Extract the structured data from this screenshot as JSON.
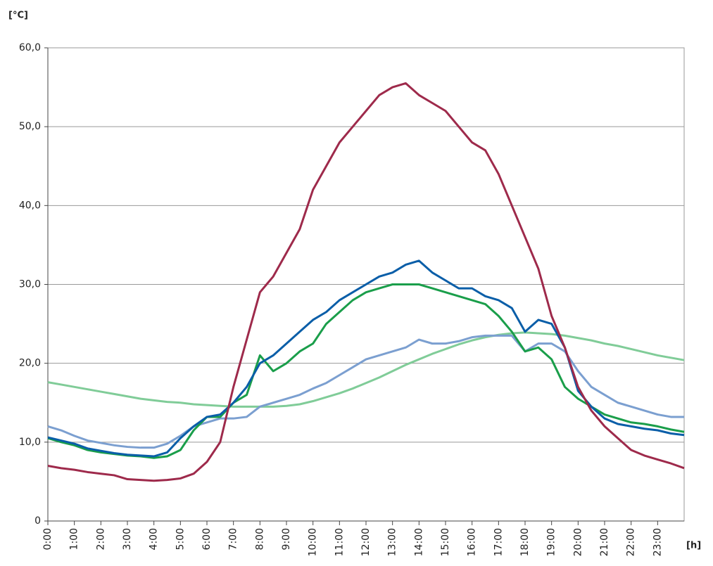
{
  "chart_data": {
    "type": "line",
    "y_label": "[°C]",
    "x_label": "[h]",
    "xlim": [
      0,
      24
    ],
    "xticks": [
      {
        "value": 0,
        "label": "0:00"
      },
      {
        "value": 1,
        "label": "1:00"
      },
      {
        "value": 2,
        "label": "2:00"
      },
      {
        "value": 3,
        "label": "3:00"
      },
      {
        "value": 4,
        "label": "4:00"
      },
      {
        "value": 5,
        "label": "5:00"
      },
      {
        "value": 6,
        "label": "6:00"
      },
      {
        "value": 7,
        "label": "7:00"
      },
      {
        "value": 8,
        "label": "8:00"
      },
      {
        "value": 9,
        "label": "9:00"
      },
      {
        "value": 10,
        "label": "10:00"
      },
      {
        "value": 11,
        "label": "11:00"
      },
      {
        "value": 12,
        "label": "12:00"
      },
      {
        "value": 13,
        "label": "13:00"
      },
      {
        "value": 14,
        "label": "14:00"
      },
      {
        "value": 15,
        "label": "15:00"
      },
      {
        "value": 16,
        "label": "16:00"
      },
      {
        "value": 17,
        "label": "17:00"
      },
      {
        "value": 18,
        "label": "18:00"
      },
      {
        "value": 19,
        "label": "19:00"
      },
      {
        "value": 20,
        "label": "20:00"
      },
      {
        "value": 21,
        "label": "21:00"
      },
      {
        "value": 22,
        "label": "22:00"
      },
      {
        "value": 23,
        "label": "23:00"
      }
    ],
    "ylim": [
      0,
      60
    ],
    "yticks": [
      0,
      {
        "value": 10,
        "label": "10,0"
      },
      {
        "value": 20,
        "label": "20,0"
      },
      {
        "value": 30,
        "label": "30,0"
      },
      {
        "value": 40,
        "label": "40,0"
      },
      {
        "value": 50,
        "label": "50,0"
      },
      {
        "value": 60,
        "label": "60,0"
      }
    ],
    "grid": true,
    "x": [
      0,
      0.5,
      1,
      1.5,
      2,
      2.5,
      3,
      3.5,
      4,
      4.5,
      5,
      5.5,
      6,
      6.5,
      7,
      7.5,
      8,
      8.5,
      9,
      9.5,
      10,
      10.5,
      11,
      11.5,
      12,
      12.5,
      13,
      13.5,
      14,
      14.5,
      15,
      15.5,
      16,
      16.5,
      17,
      17.5,
      18,
      18.5,
      19,
      19.5,
      20,
      20.5,
      21,
      21.5,
      22,
      22.5,
      23,
      23.5,
      24
    ],
    "series": [
      {
        "color": "#80cc98",
        "values": [
          17.6,
          17.3,
          17.0,
          16.7,
          16.4,
          16.1,
          15.8,
          15.5,
          15.3,
          15.1,
          15.0,
          14.8,
          14.7,
          14.6,
          14.5,
          14.5,
          14.5,
          14.5,
          14.6,
          14.8,
          15.2,
          15.7,
          16.2,
          16.8,
          17.5,
          18.2,
          19.0,
          19.8,
          20.5,
          21.2,
          21.8,
          22.4,
          22.9,
          23.3,
          23.6,
          23.8,
          23.9,
          23.8,
          23.7,
          23.5,
          23.2,
          22.9,
          22.5,
          22.2,
          21.8,
          21.4,
          21.0,
          20.7,
          20.4
        ]
      },
      {
        "color": "#7b9fd0",
        "values": [
          12,
          11.5,
          10.8,
          10.2,
          9.9,
          9.6,
          9.4,
          9.3,
          9.3,
          9.8,
          10.8,
          12,
          12.5,
          13,
          13,
          13.2,
          14.5,
          15,
          15.5,
          16,
          16.8,
          17.5,
          18.5,
          19.5,
          20.5,
          21,
          21.5,
          22,
          23,
          22.5,
          22.5,
          22.8,
          23.3,
          23.5,
          23.5,
          23.5,
          21.5,
          22.5,
          22.5,
          21.5,
          19,
          17,
          16,
          15,
          14.5,
          14,
          13.5,
          13.2,
          13.2
        ]
      },
      {
        "color": "#1a9e4a",
        "values": [
          10.5,
          10,
          9.6,
          9,
          8.7,
          8.5,
          8.3,
          8.2,
          8.0,
          8.2,
          9.0,
          11.5,
          13.2,
          13.2,
          15,
          16,
          21,
          19,
          20,
          21.5,
          22.5,
          25,
          26.5,
          28,
          29,
          29.5,
          30,
          30,
          30,
          29.5,
          29,
          28.5,
          28,
          27.5,
          26,
          24,
          21.5,
          22,
          20.5,
          17,
          15.5,
          14.5,
          13.5,
          13,
          12.5,
          12.3,
          12,
          11.6,
          11.3
        ]
      },
      {
        "color": "#0a5ea8",
        "values": [
          10.6,
          10.2,
          9.8,
          9.2,
          8.9,
          8.6,
          8.4,
          8.3,
          8.2,
          8.7,
          10.5,
          12,
          13.2,
          13.5,
          15,
          17,
          20,
          21,
          22.5,
          24,
          25.5,
          26.5,
          28,
          29,
          30,
          31,
          31.5,
          32.5,
          33,
          31.5,
          30.5,
          29.5,
          29.5,
          28.5,
          28,
          27,
          24,
          25.5,
          25,
          22,
          16.5,
          14.5,
          13,
          12.3,
          12,
          11.7,
          11.5,
          11.1,
          10.9
        ]
      },
      {
        "color": "#9e2a4b",
        "values": [
          7.0,
          6.7,
          6.5,
          6.2,
          6.0,
          5.8,
          5.3,
          5.2,
          5.1,
          5.2,
          5.4,
          6.0,
          7.5,
          10,
          17,
          23,
          29,
          31,
          34,
          37,
          42,
          45,
          48,
          50,
          52,
          54,
          55,
          55.5,
          54,
          53,
          52,
          50,
          48,
          47,
          44,
          40,
          36,
          32,
          26,
          22,
          17,
          14,
          12,
          10.5,
          9,
          8.3,
          7.8,
          7.3,
          6.7
        ]
      }
    ]
  }
}
